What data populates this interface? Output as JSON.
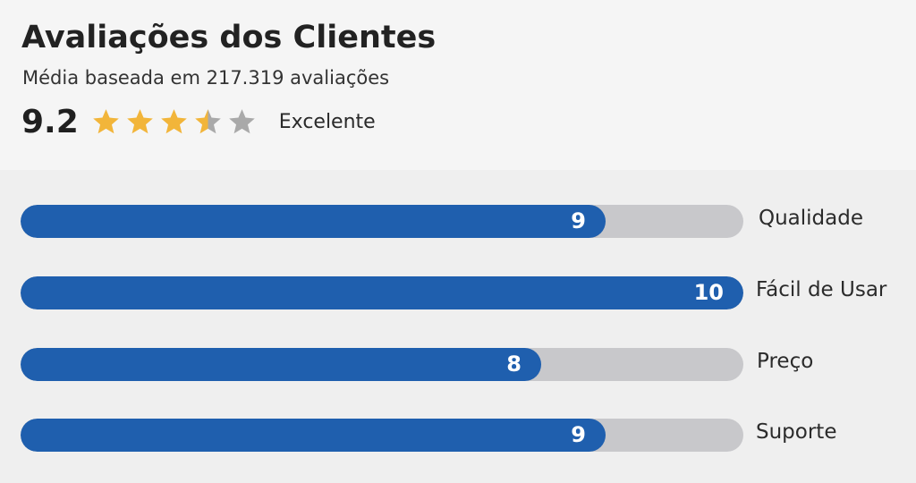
{
  "header": {
    "title": "Avaliações dos Clientes",
    "subtitle": "Média baseada em 217.319 avaliações",
    "score": "9.2",
    "stars": 3.5,
    "max_stars": 5,
    "score_label": "Excelente"
  },
  "ratings": {
    "max": 10,
    "items": [
      {
        "label": "Qualidade",
        "value": 9
      },
      {
        "label": "Fácil de Usar",
        "value": 10
      },
      {
        "label": "Preço",
        "value": 8
      },
      {
        "label": "Suporte",
        "value": 9
      }
    ]
  },
  "colors": {
    "bar_fill": "#1f5fae",
    "bar_track": "#c8c8cb",
    "star_filled": "#f2b53a",
    "star_empty": "#a9a9a9"
  }
}
